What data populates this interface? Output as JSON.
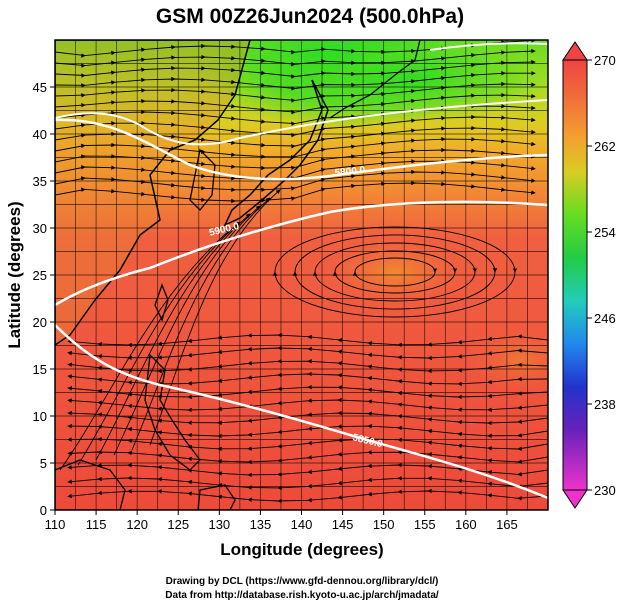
{
  "title": "GSM 00Z26Jun2024 (500.0hPa)",
  "xlabel": "Longitude (degrees)",
  "ylabel": "Latitude  (degrees)",
  "credit_line1": "Drawing by DCL (https://www.gfd-dennou.org/library/dcl/)",
  "credit_line2": "Data from http://database.rish.kyoto-u.ac.jp/arch/jmadata/",
  "x_ticks": [
    "110",
    "115",
    "120",
    "125",
    "130",
    "135",
    "140",
    "145",
    "150",
    "155",
    "160",
    "165"
  ],
  "y_ticks": [
    "0",
    "5",
    "10",
    "15",
    "20",
    "25",
    "30",
    "35",
    "40",
    "45"
  ],
  "colorbar": {
    "labels": [
      "230",
      "238",
      "246",
      "254",
      "262",
      "270"
    ],
    "min": 230,
    "max": 270
  },
  "contour_labels": [
    "5800.0",
    "5900.0",
    "5850.0"
  ],
  "map": {
    "lon_range": [
      110,
      170
    ],
    "lat_range": [
      0,
      50
    ],
    "field": "temperature (K)",
    "contours": "geopotential height (m)",
    "vectors": "wind streamlines"
  }
}
